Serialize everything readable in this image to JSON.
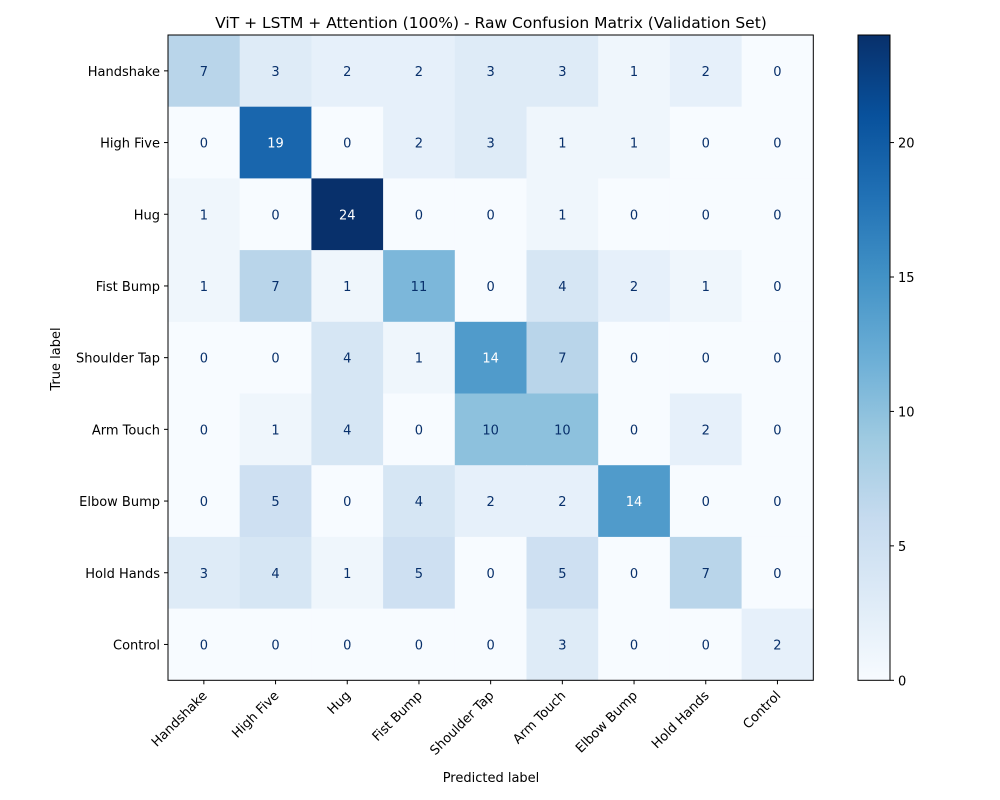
{
  "chart_data": {
    "type": "heatmap",
    "title": "ViT + LSTM + Attention (100%) - Raw Confusion Matrix (Validation Set)",
    "xlabel": "Predicted label",
    "ylabel": "True label",
    "x_categories": [
      "Handshake",
      "High Five",
      "Hug",
      "Fist Bump",
      "Shoulder Tap",
      "Arm Touch",
      "Elbow Bump",
      "Hold Hands",
      "Control"
    ],
    "y_categories": [
      "Handshake",
      "High Five",
      "Hug",
      "Fist Bump",
      "Shoulder Tap",
      "Arm Touch",
      "Elbow Bump",
      "Hold Hands",
      "Control"
    ],
    "matrix": [
      [
        7,
        3,
        2,
        2,
        3,
        3,
        1,
        2,
        0
      ],
      [
        0,
        19,
        0,
        2,
        3,
        1,
        1,
        0,
        0
      ],
      [
        1,
        0,
        24,
        0,
        0,
        1,
        0,
        0,
        0
      ],
      [
        1,
        7,
        1,
        11,
        0,
        4,
        2,
        1,
        0
      ],
      [
        0,
        0,
        4,
        1,
        14,
        7,
        0,
        0,
        0
      ],
      [
        0,
        1,
        4,
        0,
        10,
        10,
        0,
        2,
        0
      ],
      [
        0,
        5,
        0,
        4,
        2,
        2,
        14,
        0,
        0
      ],
      [
        3,
        4,
        1,
        5,
        0,
        5,
        0,
        7,
        0
      ],
      [
        0,
        0,
        0,
        0,
        0,
        3,
        0,
        0,
        2
      ]
    ],
    "colormap": "Blues",
    "value_range": [
      0,
      24
    ],
    "colorbar_ticks": [
      0,
      5,
      10,
      15,
      20
    ],
    "text_color_dark": "#08306b",
    "text_color_light": "#ffffff"
  }
}
